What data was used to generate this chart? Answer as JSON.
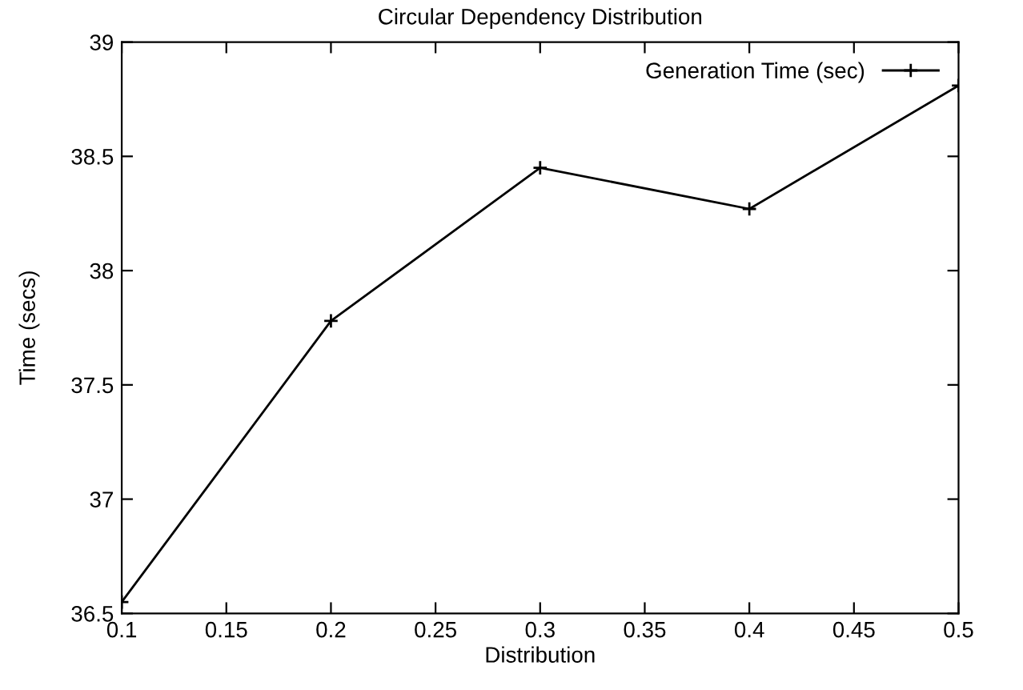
{
  "chart_data": {
    "type": "line",
    "title": "Circular Dependency Distribution",
    "xlabel": "Distribution",
    "ylabel": "Time (secs)",
    "x": [
      0.1,
      0.2,
      0.3,
      0.4,
      0.5
    ],
    "series": [
      {
        "name": "Generation Time (sec)",
        "color": "#000000",
        "values": [
          36.55,
          37.78,
          38.45,
          38.27,
          38.81
        ]
      }
    ],
    "xlim": [
      0.1,
      0.5
    ],
    "xticks": [
      0.1,
      0.15,
      0.2,
      0.25,
      0.3,
      0.35,
      0.4,
      0.45,
      0.5
    ],
    "ylim": [
      36.5,
      39
    ],
    "yticks": [
      36.5,
      37,
      37.5,
      38,
      38.5,
      39
    ],
    "grid": false,
    "legend": "top right",
    "marker": "cross",
    "line_style": "solid"
  }
}
